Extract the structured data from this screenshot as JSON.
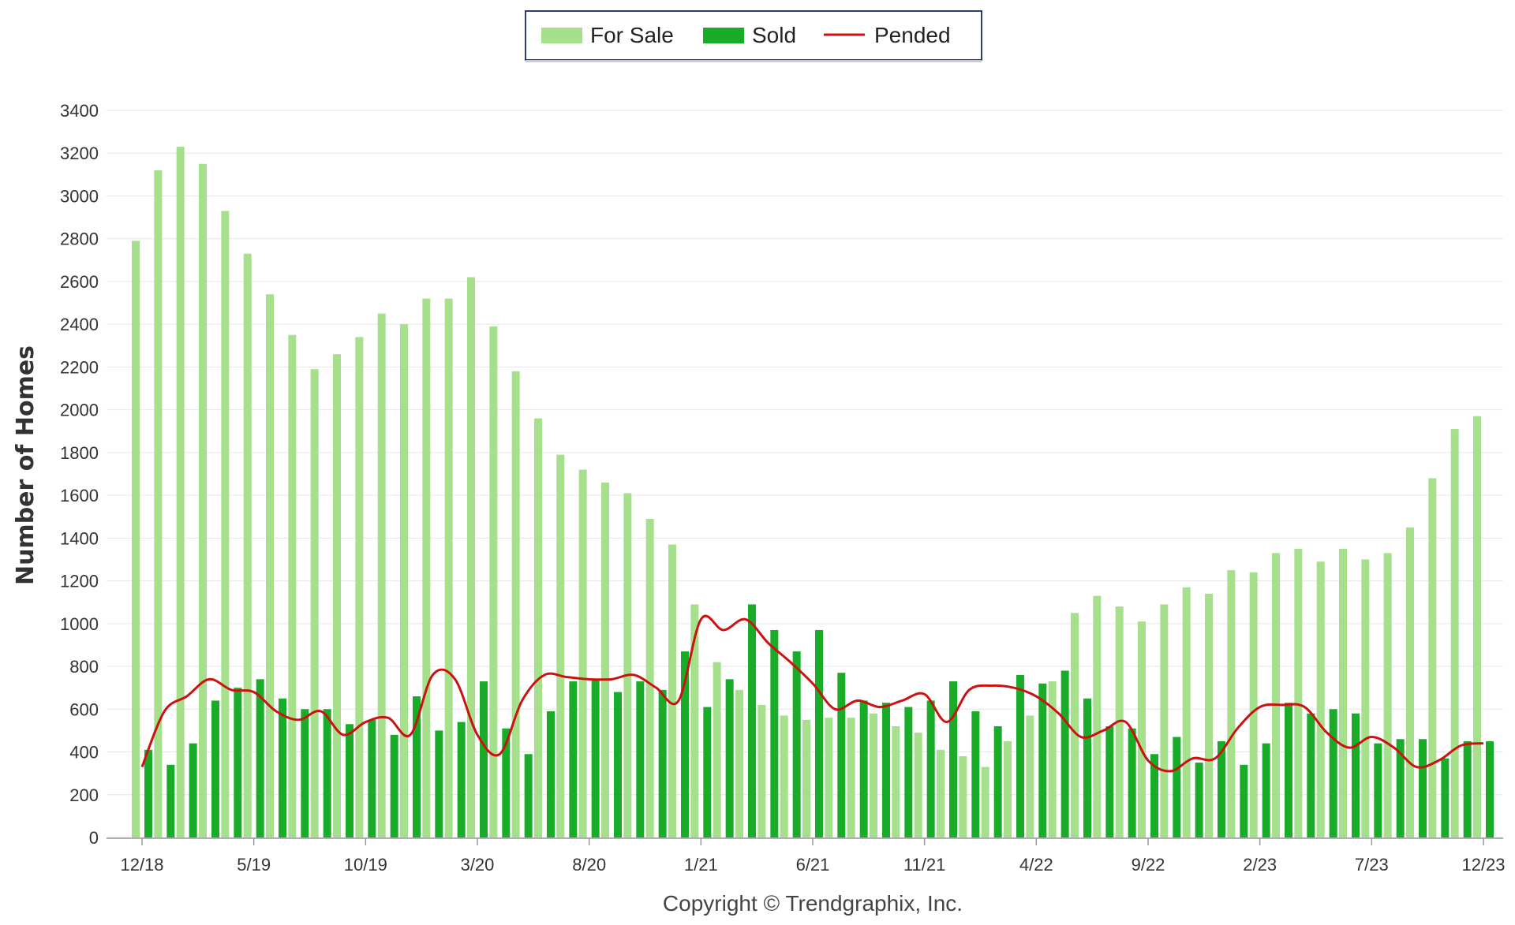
{
  "chart_data": {
    "type": "bar",
    "ylabel": "Number of Homes",
    "ylim": [
      0,
      3400
    ],
    "yticks": [
      0,
      200,
      400,
      600,
      800,
      1000,
      1200,
      1400,
      1600,
      1800,
      2000,
      2200,
      2400,
      2600,
      2800,
      3000,
      3200,
      3400
    ],
    "grid": true,
    "legend": "top-center",
    "copyright": "Copyright © Trendgraphix, Inc.",
    "x_tick_labels": [
      {
        "index": 0,
        "label": "12/18"
      },
      {
        "index": 5,
        "label": "5/19"
      },
      {
        "index": 10,
        "label": "10/19"
      },
      {
        "index": 15,
        "label": "3/20"
      },
      {
        "index": 20,
        "label": "8/20"
      },
      {
        "index": 25,
        "label": "1/21"
      },
      {
        "index": 30,
        "label": "6/21"
      },
      {
        "index": 35,
        "label": "11/21"
      },
      {
        "index": 40,
        "label": "4/22"
      },
      {
        "index": 45,
        "label": "9/22"
      },
      {
        "index": 50,
        "label": "2/23"
      },
      {
        "index": 55,
        "label": "7/23"
      },
      {
        "index": 60,
        "label": "12/23"
      }
    ],
    "categories": [
      "2018-12",
      "2019-01",
      "2019-02",
      "2019-03",
      "2019-04",
      "2019-05",
      "2019-06",
      "2019-07",
      "2019-08",
      "2019-09",
      "2019-10",
      "2019-11",
      "2019-12",
      "2020-01",
      "2020-02",
      "2020-03",
      "2020-04",
      "2020-05",
      "2020-06",
      "2020-07",
      "2020-08",
      "2020-09",
      "2020-10",
      "2020-11",
      "2020-12",
      "2021-01",
      "2021-02",
      "2021-03",
      "2021-04",
      "2021-05",
      "2021-06",
      "2021-07",
      "2021-08",
      "2021-09",
      "2021-10",
      "2021-11",
      "2021-12",
      "2022-01",
      "2022-02",
      "2022-03",
      "2022-04",
      "2022-05",
      "2022-06",
      "2022-07",
      "2022-08",
      "2022-09",
      "2022-10",
      "2022-11",
      "2022-12",
      "2023-01",
      "2023-02",
      "2023-03",
      "2023-04",
      "2023-05",
      "2023-06",
      "2023-07",
      "2023-08",
      "2023-09",
      "2023-10",
      "2023-11",
      "2023-12"
    ],
    "series": [
      {
        "name": "For Sale",
        "type": "bar",
        "color": "#a6e08c",
        "values": [
          2790,
          3120,
          3230,
          3150,
          2930,
          2730,
          2540,
          2350,
          2190,
          2260,
          2340,
          2450,
          2400,
          2520,
          2520,
          2620,
          2390,
          2180,
          1960,
          1790,
          1720,
          1660,
          1610,
          1490,
          1370,
          1090,
          820,
          690,
          620,
          570,
          550,
          560,
          560,
          580,
          520,
          490,
          410,
          380,
          330,
          450,
          570,
          730,
          1050,
          1130,
          1080,
          1010,
          1090,
          1170,
          1140,
          1250,
          1240,
          1330,
          1350,
          1290,
          1350,
          1300,
          1330,
          1450,
          1680,
          1910,
          1970
        ]
      },
      {
        "name": "Sold",
        "type": "bar",
        "color": "#18ac28",
        "values": [
          410,
          340,
          440,
          640,
          700,
          740,
          650,
          600,
          600,
          530,
          550,
          480,
          660,
          500,
          540,
          730,
          510,
          390,
          590,
          730,
          740,
          680,
          730,
          690,
          870,
          610,
          740,
          1090,
          970,
          870,
          970,
          770,
          640,
          630,
          610,
          640,
          730,
          590,
          520,
          760,
          720,
          780,
          650,
          520,
          510,
          390,
          470,
          350,
          450,
          340,
          440,
          630,
          580,
          600,
          580,
          440,
          460,
          460,
          370,
          450,
          450
        ]
      },
      {
        "name": "Pended",
        "type": "line",
        "color": "#cc1111",
        "values": [
          330,
          590,
          660,
          740,
          690,
          680,
          590,
          550,
          590,
          480,
          540,
          560,
          480,
          760,
          740,
          480,
          390,
          640,
          760,
          750,
          740,
          740,
          760,
          700,
          640,
          1020,
          970,
          1020,
          910,
          820,
          720,
          600,
          640,
          610,
          640,
          670,
          540,
          690,
          710,
          700,
          660,
          580,
          470,
          500,
          540,
          360,
          310,
          370,
          370,
          510,
          610,
          620,
          610,
          490,
          420,
          470,
          420,
          330,
          360,
          430,
          440
        ]
      }
    ]
  }
}
